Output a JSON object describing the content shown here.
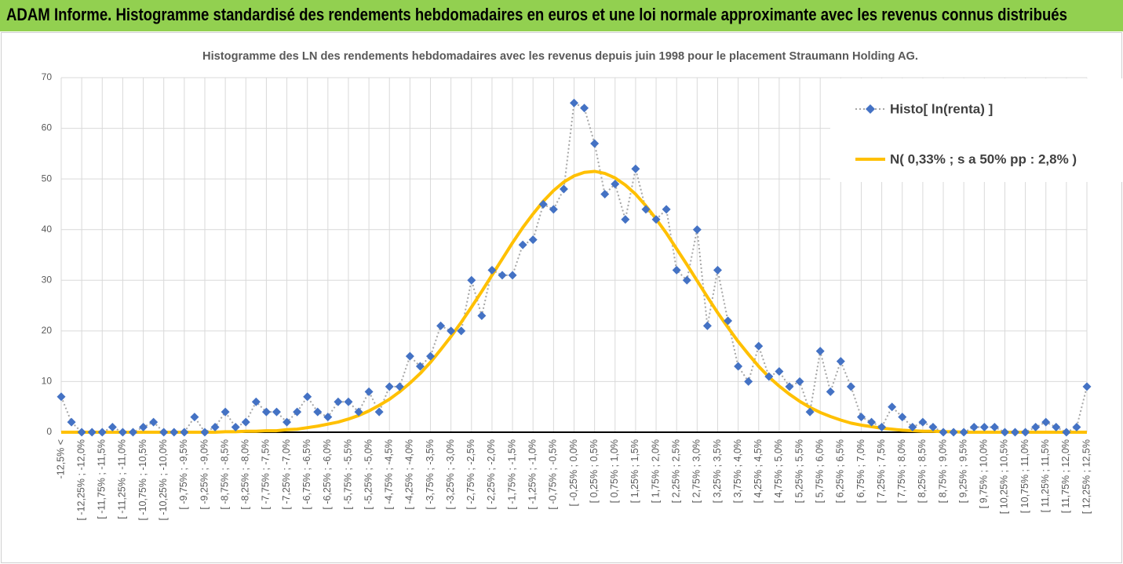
{
  "chart_data": {
    "type": "line",
    "title": "ADAM Informe. Histogramme standardisé des rendements hebdomadaires en euros et une loi normale approximante avec les revenus connus distribués",
    "subtitle": "Histogramme des LN des rendements hebdomadaires avec les revenus depuis juin 1998 pour le placement Straumann Holding AG.",
    "categories": [
      "-12,5% <",
      null,
      "[ -12,25% ; -12,0%",
      null,
      "[ -11,75% ; -11,5%",
      null,
      "[ -11,25% ; -11,0%",
      null,
      "[ -10,75% ; -10,5%",
      null,
      "[ -10,25% ; -10,0%",
      null,
      "[ -9,75% ; -9,5%",
      null,
      "[ -9,25% ; -9,0%",
      null,
      "[ -8,75% ; -8,5%",
      null,
      "[ -8,25% ; -8,0%",
      null,
      "[ -7,75% ; -7,5%",
      null,
      "[ -7,25% ; -7,0%",
      null,
      "[ -6,75% ; -6,5%",
      null,
      "[ -6,25% ; -6,0%",
      null,
      "[ -5,75% ; -5,5%",
      null,
      "[ -5,25% ; -5,0%",
      null,
      "[ -4,75% ; -4,5%",
      null,
      "[ -4,25% ; -4,0%",
      null,
      "[ -3,75% ; -3,5%",
      null,
      "[ -3,25% ; -3,0%",
      null,
      "[ -2,75% ; -2,5%",
      null,
      "[ -2,25% ; -2,0%",
      null,
      "[ -1,75% ; -1,5%",
      null,
      "[ -1,25% ; -1,0%",
      null,
      "[ -0,75% ; -0,5%",
      null,
      "[ -0,25% ; 0,0%",
      null,
      "[ 0,25% ; 0,5%",
      null,
      "[ 0,75% ; 1,0%",
      null,
      "[ 1,25% ; 1,5%",
      null,
      "[ 1,75% ; 2,0%",
      null,
      "[ 2,25% ; 2,5%",
      null,
      "[ 2,75% ; 3,0%",
      null,
      "[ 3,25% ; 3,5%",
      null,
      "[ 3,75% ; 4,0%",
      null,
      "[ 4,25% ; 4,5%",
      null,
      "[ 4,75% ; 5,0%",
      null,
      "[ 5,25% ; 5,5%",
      null,
      "[ 5,75% ; 6,0%",
      null,
      "[ 6,25% ; 6,5%",
      null,
      "[ 6,75% ; 7,0%",
      null,
      "[ 7,25% ; 7,5%",
      null,
      "[ 7,75% ; 8,0%",
      null,
      "[ 8,25% ; 8,5%",
      null,
      "[ 8,75% ; 9,0%",
      null,
      "[ 9,25% ; 9,5%",
      null,
      "[ 9,75% ; 10,0%",
      null,
      "[ 10,25% ; 10,5%",
      null,
      "[ 10,75% ; 11,0%",
      null,
      "[ 11,25% ; 11,5%",
      null,
      "[ 11,75% ; 12,0%",
      null,
      "[ 12,25% ; 12,5%"
    ],
    "series": [
      {
        "name": "Histo[ ln(renta) ]",
        "color": "#4472c4",
        "line_color": "#a6a6a6",
        "values": [
          7,
          2,
          0,
          0,
          0,
          1,
          0,
          0,
          1,
          2,
          0,
          0,
          0,
          3,
          0,
          1,
          4,
          1,
          2,
          6,
          4,
          4,
          2,
          4,
          7,
          4,
          3,
          6,
          6,
          4,
          8,
          4,
          9,
          9,
          15,
          13,
          15,
          21,
          20,
          20,
          30,
          23,
          32,
          31,
          31,
          37,
          38,
          45,
          44,
          48,
          65,
          64,
          57,
          47,
          49,
          42,
          52,
          44,
          42,
          44,
          32,
          30,
          40,
          21,
          32,
          22,
          13,
          10,
          17,
          11,
          12,
          9,
          10,
          4,
          16,
          8,
          14,
          9,
          3,
          2,
          1,
          5,
          3,
          1,
          2,
          1,
          0,
          0,
          0,
          1,
          1,
          1,
          0,
          0,
          0,
          1,
          2,
          1,
          0,
          1,
          9
        ]
      },
      {
        "name": "N( 0,33% ; s a 50% pp : 2,8% )",
        "color": "#ffc000",
        "values": [
          0,
          0,
          0,
          0,
          0,
          0,
          0,
          0,
          0,
          0,
          0,
          0,
          0,
          0,
          0,
          0,
          0.1,
          0.1,
          0.2,
          0.2,
          0.3,
          0.3,
          0.5,
          0.6,
          0.9,
          1.2,
          1.6,
          2.0,
          2.6,
          3.3,
          4.2,
          5.3,
          6.5,
          8.0,
          9.7,
          11.6,
          13.8,
          16.3,
          18.9,
          21.7,
          24.7,
          27.8,
          31.0,
          34.2,
          37.4,
          40.4,
          43.1,
          45.6,
          47.7,
          49.4,
          50.6,
          51.3,
          51.5,
          51.1,
          50.2,
          48.8,
          47.0,
          44.7,
          42.1,
          39.3,
          36.2,
          33.1,
          29.9,
          26.7,
          23.6,
          20.7,
          17.9,
          15.4,
          13.0,
          10.9,
          9.1,
          7.5,
          6.1,
          4.9,
          3.9,
          3.1,
          2.4,
          1.8,
          1.4,
          1.1,
          0.8,
          0.6,
          0.4,
          0.3,
          0.2,
          0.2,
          0.1,
          0.1,
          0,
          0,
          0,
          0,
          0,
          0,
          0,
          0,
          0,
          0,
          0,
          0,
          0
        ]
      }
    ],
    "ylim": [
      0,
      70
    ],
    "yticks": [
      0,
      10,
      20,
      30,
      40,
      50,
      60,
      70
    ],
    "grid": true,
    "legend": "top-right"
  }
}
